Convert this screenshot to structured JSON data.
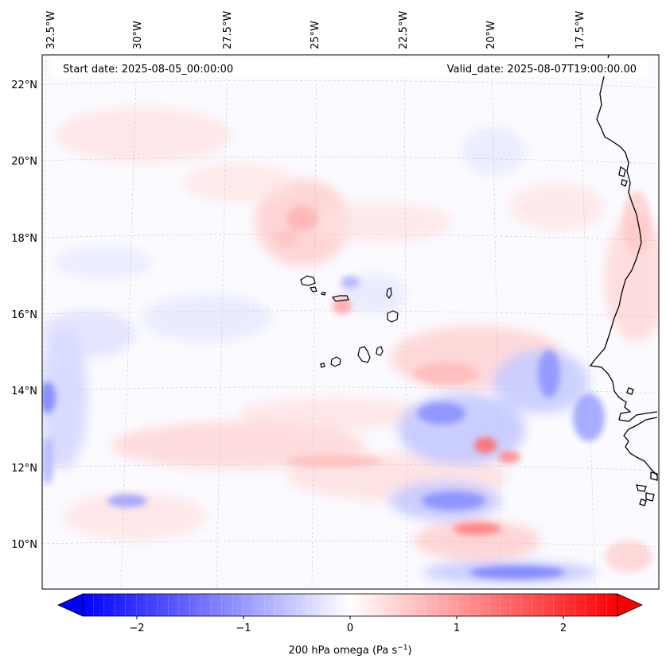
{
  "header": {
    "start_label": "Start date: 2025-08-05_00:00:00",
    "valid_label": "Valid_date: 2025-08-07T19:00:00.00"
  },
  "axes": {
    "lon_ticks": [
      "32.5°W",
      "30°W",
      "27.5°W",
      "25°W",
      "22.5°W",
      "20°W",
      "17.5°W"
    ],
    "lat_ticks": [
      "22°N",
      "20°N",
      "18°N",
      "16°N",
      "14°N",
      "12°N",
      "10°N"
    ]
  },
  "colorbar": {
    "ticks": [
      "−2",
      "−1",
      "0",
      "1",
      "2"
    ],
    "label": "200 hPa omega (Pa s",
    "label_sup": "−1",
    "label_end": ")",
    "min_color": "#0000ff",
    "mid_color": "#ffffff",
    "max_color": "#ff0000",
    "range": [
      -2.6,
      2.6
    ]
  },
  "map": {
    "field": "200 hPa omega",
    "coastline_color": "#000000",
    "grid": true,
    "islands": [
      "Santo Antão",
      "São Vicente",
      "São Nicolau",
      "Sal",
      "Boa Vista",
      "Maio",
      "Santiago",
      "Fogo",
      "Brava"
    ]
  }
}
